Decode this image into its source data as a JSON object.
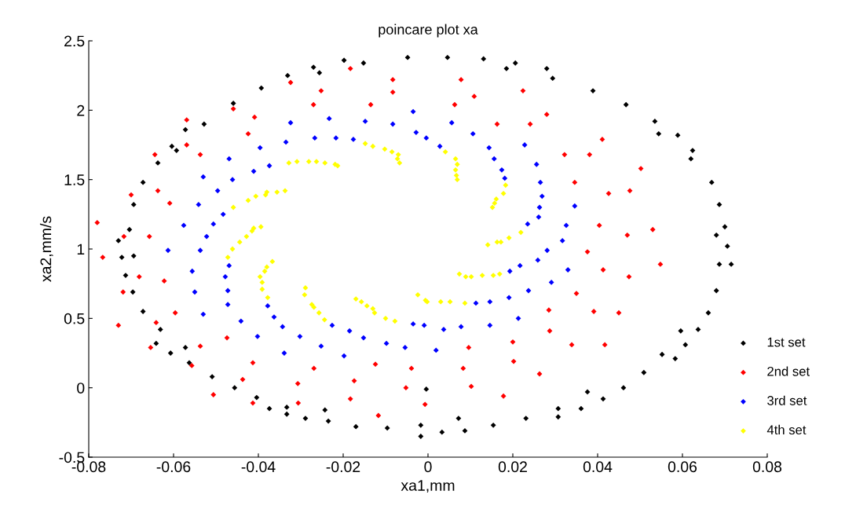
{
  "chart_data": {
    "type": "scatter",
    "title": "poincare plot xa",
    "xlabel": "xa1,mm",
    "ylabel": "xa2,mm/s",
    "xlim": [
      -0.08,
      0.08
    ],
    "ylim": [
      -0.5,
      2.5
    ],
    "xticks": [
      {
        "value": -0.08,
        "label": "-0.08"
      },
      {
        "value": -0.06,
        "label": "-0.06"
      },
      {
        "value": -0.04,
        "label": "-0.04"
      },
      {
        "value": -0.02,
        "label": "-0.02"
      },
      0,
      0.02,
      0.04,
      0.06,
      0.08
    ],
    "yticks": [
      {
        "value": -0.5,
        "label": "-0.5"
      },
      0,
      0.5,
      1,
      1.5,
      2,
      2.5
    ],
    "grid": false,
    "legend": "bottom right",
    "marker": "diamond",
    "series": [
      {
        "name": "1st set",
        "color": "#000000",
        "x": [
          -0.073,
          -0.0704,
          -0.0694,
          -0.0672,
          -0.0637,
          -0.0604,
          -0.0593,
          -0.0572,
          -0.0528,
          -0.0459,
          -0.0393,
          -0.0331,
          -0.027,
          -0.0256,
          -0.0198,
          -0.0152,
          -0.0048,
          0.0046,
          0.0131,
          0.0185,
          0.0206,
          0.028,
          0.0294,
          0.0389,
          0.0467,
          0.0535,
          0.0544,
          0.0589,
          0.0624,
          0.062,
          0.0669,
          0.0687,
          0.07,
          0.068,
          0.0706,
          0.0687,
          0.0715,
          0.068,
          0.0661,
          0.0637,
          0.0596,
          0.0607,
          0.0552,
          0.0583,
          0.0509,
          0.0461,
          0.0376,
          0.0413,
          0.0361,
          0.0307,
          0.0307,
          0.0231,
          0.0154,
          0.0087,
          0.0072,
          0.0033,
          -0.0004,
          -0.0017,
          -0.0017,
          -0.0096,
          -0.017,
          -0.0235,
          -0.0243,
          -0.0289,
          -0.0333,
          -0.0333,
          -0.0374,
          -0.0404,
          -0.0456,
          -0.0509,
          -0.0563,
          -0.0572,
          -0.0607,
          -0.0641,
          -0.0631,
          -0.0672,
          -0.0696,
          -0.0713,
          -0.0722,
          -0.0694
        ],
        "values": [
          1.06,
          1.14,
          1.32,
          1.48,
          1.62,
          1.74,
          1.71,
          1.86,
          1.9,
          2.05,
          2.16,
          2.25,
          2.31,
          2.27,
          2.36,
          2.34,
          2.38,
          2.38,
          2.37,
          2.3,
          2.34,
          2.3,
          2.23,
          2.14,
          2.04,
          1.92,
          1.83,
          1.82,
          1.71,
          1.65,
          1.48,
          1.32,
          1.16,
          1.1,
          1.02,
          0.89,
          0.89,
          0.7,
          0.54,
          0.42,
          0.41,
          0.31,
          0.24,
          0.21,
          0.11,
          0.0,
          -0.03,
          -0.08,
          -0.15,
          -0.15,
          -0.21,
          -0.22,
          -0.27,
          -0.31,
          -0.22,
          -0.32,
          -0.01,
          -0.27,
          -0.35,
          -0.29,
          -0.28,
          -0.24,
          -0.16,
          -0.22,
          -0.14,
          -0.19,
          -0.15,
          -0.07,
          0.0,
          0.08,
          0.18,
          0.29,
          0.25,
          0.32,
          0.42,
          0.55,
          0.69,
          0.81,
          0.94,
          0.95
        ]
      },
      {
        "name": "2nd set",
        "color": "#ff0000",
        "x": [
          -0.078,
          -0.0717,
          -0.0657,
          -0.07,
          -0.0637,
          -0.0609,
          -0.0644,
          -0.0569,
          -0.0569,
          -0.0537,
          -0.0459,
          -0.0424,
          -0.0409,
          -0.0324,
          -0.027,
          -0.0183,
          -0.0252,
          -0.0135,
          -0.0083,
          -0.0083,
          0.0078,
          0.0063,
          0.0109,
          0.0163,
          0.0224,
          0.0241,
          0.028,
          0.0411,
          0.0322,
          0.0381,
          0.0502,
          0.0346,
          0.0426,
          0.0476,
          0.0404,
          0.047,
          0.053,
          0.0376,
          0.0548,
          0.0413,
          0.0474,
          0.035,
          0.0285,
          0.0391,
          0.045,
          0.0287,
          0.0339,
          0.0417,
          0.0263,
          0.02,
          0.0202,
          0.0096,
          0.0083,
          0.0102,
          0.0178,
          -0.0039,
          -0.0052,
          -0.0007,
          -0.0124,
          -0.0174,
          -0.0183,
          -0.0117,
          -0.0269,
          -0.0767,
          -0.0681,
          -0.0719,
          -0.0622,
          -0.073,
          -0.0641,
          -0.0596,
          -0.0654,
          -0.0537,
          -0.0557,
          -0.0474,
          -0.0506,
          -0.0413,
          -0.0437,
          -0.0413,
          -0.0307,
          -0.0306
        ],
        "values": [
          1.19,
          1.09,
          1.09,
          1.39,
          1.42,
          1.33,
          1.68,
          1.93,
          1.75,
          1.68,
          2.01,
          1.83,
          1.95,
          2.2,
          2.04,
          2.3,
          2.14,
          2.04,
          2.22,
          2.13,
          2.22,
          2.04,
          2.1,
          1.9,
          2.14,
          1.9,
          1.97,
          1.79,
          1.68,
          1.68,
          1.58,
          1.48,
          1.4,
          1.42,
          1.17,
          1.1,
          1.14,
          0.98,
          0.89,
          0.85,
          0.8,
          0.68,
          0.56,
          0.55,
          0.54,
          0.41,
          0.31,
          0.31,
          0.1,
          0.33,
          0.19,
          0.29,
          0.14,
          0.01,
          -0.06,
          0.14,
          0.0,
          -0.12,
          0.17,
          0.05,
          -0.08,
          -0.2,
          0.14,
          0.94,
          0.8,
          0.69,
          0.77,
          0.45,
          0.47,
          0.54,
          0.29,
          0.3,
          0.16,
          0.36,
          -0.05,
          0.18,
          0.06,
          -0.11,
          0.03,
          -0.11
        ]
      },
      {
        "name": "3rd set",
        "color": "#0000ff",
        "x": [
          -0.0324,
          -0.0335,
          -0.0396,
          -0.0469,
          -0.0374,
          -0.0411,
          -0.053,
          -0.0461,
          -0.0496,
          -0.0541,
          -0.0483,
          -0.0576,
          -0.0506,
          -0.0522,
          -0.0613,
          -0.0537,
          -0.0267,
          -0.0233,
          -0.0148,
          -0.0083,
          -0.0035,
          -0.0028,
          0.0056,
          -0.0217,
          -0.0176,
          -0.0004,
          0.0028,
          0.0106,
          0.0144,
          0.0228,
          0.0156,
          0.0174,
          0.0181,
          0.0256,
          0.0265,
          0.0269,
          0.0263,
          0.0261,
          0.0235,
          0.0346,
          0.0326,
          0.0317,
          0.0281,
          0.033,
          0.0291,
          0.0259,
          0.0217,
          0.0193,
          0.0237,
          0.0191,
          0.0213,
          0.0146,
          0.0113,
          0.0146,
          0.0078,
          0.0037,
          -0.0009,
          -0.0035,
          0.0019,
          -0.0054,
          -0.0098,
          -0.0152,
          -0.0185,
          -0.0198,
          -0.0226,
          -0.0252,
          -0.0556,
          -0.0478,
          -0.0469,
          -0.055,
          -0.0472,
          -0.0472,
          -0.053,
          -0.0441,
          -0.0378,
          -0.0363,
          -0.0343,
          -0.0402,
          -0.0302,
          -0.0339
        ],
        "values": [
          1.91,
          1.77,
          1.73,
          1.65,
          1.6,
          1.56,
          1.52,
          1.5,
          1.42,
          1.32,
          1.25,
          1.17,
          1.18,
          1.09,
          0.99,
          0.99,
          1.8,
          1.94,
          1.92,
          1.9,
          1.99,
          1.84,
          1.91,
          1.8,
          1.79,
          1.8,
          1.74,
          1.83,
          1.73,
          1.75,
          1.65,
          1.57,
          1.51,
          1.61,
          1.48,
          1.38,
          1.3,
          1.23,
          1.18,
          1.31,
          1.17,
          1.06,
          0.99,
          0.85,
          0.76,
          0.92,
          0.88,
          0.84,
          0.7,
          0.65,
          0.5,
          0.62,
          0.61,
          0.45,
          0.44,
          0.42,
          0.45,
          0.46,
          0.27,
          0.29,
          0.32,
          0.36,
          0.41,
          0.23,
          0.45,
          0.3,
          0.84,
          0.8,
          0.88,
          0.69,
          0.7,
          0.6,
          0.53,
          0.48,
          0.59,
          0.51,
          0.44,
          0.37,
          0.37,
          0.25
        ]
      },
      {
        "name": "4th set",
        "color": "#ffff00",
        "x": [
          -0.0328,
          -0.0309,
          -0.0281,
          -0.0263,
          -0.0243,
          -0.0219,
          -0.0213,
          -0.0337,
          -0.0356,
          -0.038,
          -0.0383,
          -0.0406,
          -0.0424,
          -0.0459,
          -0.0394,
          -0.0411,
          -0.0415,
          -0.0428,
          -0.0444,
          -0.0461,
          -0.0472,
          -0.0148,
          -0.013,
          -0.0102,
          -0.0085,
          -0.007,
          -0.0072,
          -0.0067,
          0.0041,
          0.0065,
          0.0069,
          0.0065,
          0.0067,
          0.0069,
          0.0183,
          0.0178,
          0.0161,
          0.0157,
          0.0152,
          0.0219,
          0.0191,
          0.0172,
          0.0163,
          0.0141,
          0.0074,
          0.0089,
          0.0102,
          0.0128,
          0.0154,
          0.0169,
          -0.0024,
          -0.0006,
          -0.0002,
          0.003,
          0.0052,
          0.0087,
          -0.017,
          -0.0157,
          -0.0144,
          -0.013,
          -0.0126,
          -0.01,
          -0.0078,
          -0.0269,
          -0.0257,
          -0.0244,
          -0.0289,
          -0.0291,
          -0.0274,
          -0.0367,
          -0.038,
          -0.0385,
          -0.0396,
          -0.0391,
          -0.0391,
          -0.0378
        ],
        "values": [
          1.62,
          1.63,
          1.63,
          1.63,
          1.62,
          1.61,
          1.6,
          1.42,
          1.41,
          1.41,
          1.39,
          1.38,
          1.35,
          1.3,
          1.16,
          1.15,
          1.13,
          1.09,
          1.05,
          1.0,
          0.94,
          1.76,
          1.74,
          1.72,
          1.7,
          1.68,
          1.65,
          1.62,
          1.7,
          1.65,
          1.61,
          1.57,
          1.53,
          1.5,
          1.46,
          1.4,
          1.36,
          1.33,
          1.3,
          1.12,
          1.08,
          1.05,
          1.05,
          1.03,
          0.82,
          0.8,
          0.8,
          0.81,
          0.81,
          0.82,
          0.67,
          0.63,
          0.62,
          0.62,
          0.62,
          0.61,
          0.64,
          0.62,
          0.59,
          0.57,
          0.54,
          0.5,
          0.48,
          0.58,
          0.54,
          0.49,
          0.72,
          0.67,
          0.6,
          0.91,
          0.87,
          0.84,
          0.8,
          0.76,
          0.71,
          0.65
        ]
      }
    ]
  }
}
